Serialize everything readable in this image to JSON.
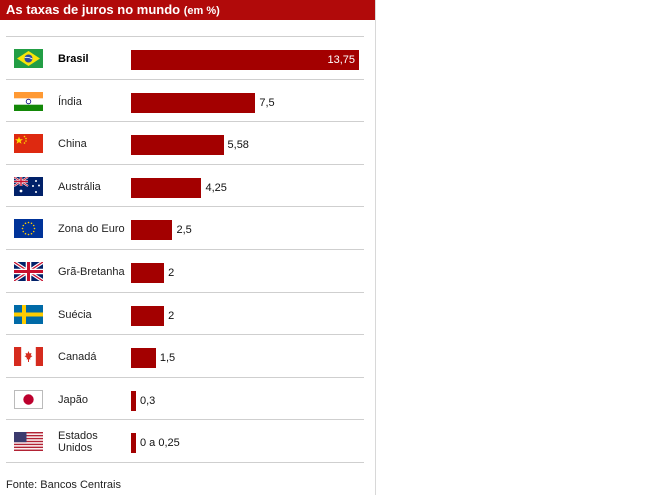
{
  "header": {
    "title": "As taxas de juros no mundo",
    "unit": "(em %)"
  },
  "footer": {
    "source": "Fonte: Bancos Centrais"
  },
  "colors": {
    "bar": "#a30000",
    "header": "#b10a0a"
  },
  "chart_data": {
    "type": "bar",
    "orientation": "horizontal",
    "title": "As taxas de juros no mundo",
    "unit": "(em %)",
    "categories": [
      "Brasil",
      "Índia",
      "China",
      "Austrália",
      "Zona do Euro",
      "Grã-Bretanha",
      "Suécia",
      "Canadá",
      "Japão",
      "Estados Unidos"
    ],
    "values": [
      13.75,
      7.5,
      5.58,
      4.25,
      2.5,
      2,
      2,
      1.5,
      0.3,
      0.25
    ],
    "value_labels": [
      "13,75",
      "7,5",
      "5,58",
      "4,25",
      "2,5",
      "2",
      "2",
      "1,5",
      "0,3",
      "0 a 0,25"
    ],
    "flags": [
      "brazil-flag",
      "india-flag",
      "china-flag",
      "australia-flag",
      "eu-flag",
      "uk-flag",
      "sweden-flag",
      "canada-flag",
      "japan-flag",
      "usa-flag"
    ],
    "xlim": [
      0,
      13.75
    ],
    "grid": false,
    "legend": "none"
  }
}
